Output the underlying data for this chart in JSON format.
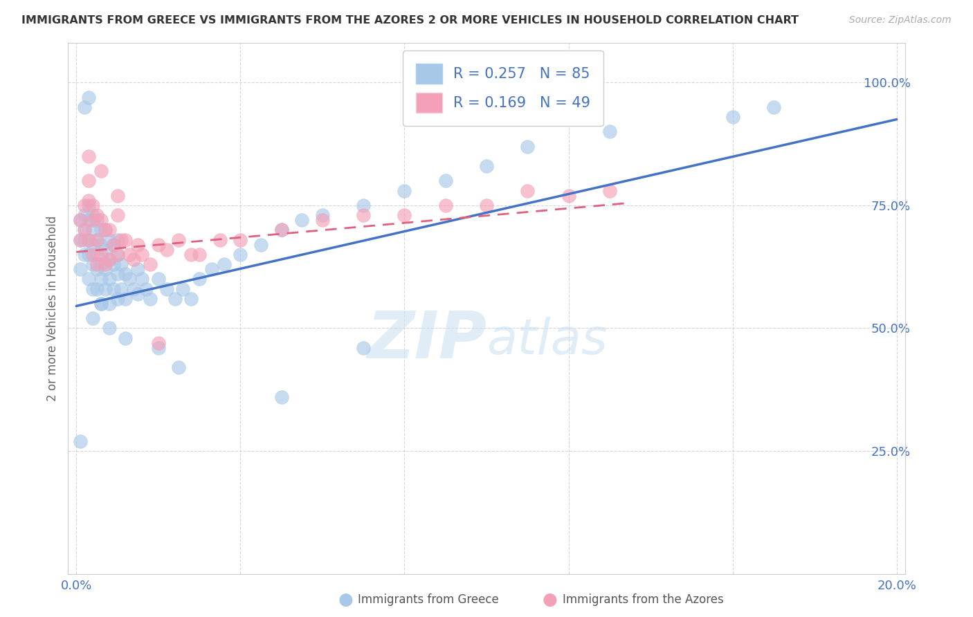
{
  "title": "IMMIGRANTS FROM GREECE VS IMMIGRANTS FROM THE AZORES 2 OR MORE VEHICLES IN HOUSEHOLD CORRELATION CHART",
  "source": "Source: ZipAtlas.com",
  "ylabel": "2 or more Vehicles in Household",
  "xlim": [
    0.0,
    0.2
  ],
  "ylim": [
    0.0,
    1.0
  ],
  "x_ticks": [
    0.0,
    0.04,
    0.08,
    0.12,
    0.16,
    0.2
  ],
  "x_tick_labels": [
    "0.0%",
    "",
    "",
    "",
    "",
    "20.0%"
  ],
  "y_ticks": [
    0.0,
    0.25,
    0.5,
    0.75,
    1.0
  ],
  "y_tick_labels": [
    "",
    "25.0%",
    "50.0%",
    "75.0%",
    "100.0%"
  ],
  "greece_color": "#a8c8e8",
  "azores_color": "#f4a0b8",
  "greece_R": 0.257,
  "greece_N": 85,
  "azores_R": 0.169,
  "azores_N": 49,
  "greece_line_color": "#4472c4",
  "azores_line_color": "#e06080",
  "watermark_zip": "ZIP",
  "watermark_atlas": "atlas",
  "legend_label_greece": "Immigrants from Greece",
  "legend_label_azores": "Immigrants from the Azores",
  "greece_line_x0": 0.0,
  "greece_line_y0": 0.545,
  "greece_line_x1": 0.2,
  "greece_line_y1": 0.925,
  "azores_line_x0": 0.0,
  "azores_line_y0": 0.655,
  "azores_line_x1": 0.135,
  "azores_line_y1": 0.755,
  "background_color": "#ffffff",
  "grid_color": "#cccccc",
  "greece_scatter_x": [
    0.001,
    0.001,
    0.001,
    0.002,
    0.002,
    0.002,
    0.002,
    0.003,
    0.003,
    0.003,
    0.003,
    0.003,
    0.004,
    0.004,
    0.004,
    0.004,
    0.004,
    0.005,
    0.005,
    0.005,
    0.005,
    0.005,
    0.006,
    0.006,
    0.006,
    0.006,
    0.006,
    0.007,
    0.007,
    0.007,
    0.007,
    0.008,
    0.008,
    0.008,
    0.008,
    0.009,
    0.009,
    0.009,
    0.01,
    0.01,
    0.01,
    0.011,
    0.011,
    0.012,
    0.012,
    0.013,
    0.014,
    0.015,
    0.015,
    0.016,
    0.017,
    0.018,
    0.02,
    0.022,
    0.024,
    0.026,
    0.028,
    0.03,
    0.033,
    0.036,
    0.04,
    0.045,
    0.05,
    0.055,
    0.06,
    0.07,
    0.08,
    0.09,
    0.1,
    0.11,
    0.13,
    0.16,
    0.17,
    0.002,
    0.003,
    0.01,
    0.02,
    0.025,
    0.05,
    0.07,
    0.001,
    0.004,
    0.006,
    0.008,
    0.012
  ],
  "greece_scatter_y": [
    0.62,
    0.68,
    0.72,
    0.7,
    0.73,
    0.68,
    0.65,
    0.75,
    0.72,
    0.68,
    0.65,
    0.6,
    0.73,
    0.7,
    0.67,
    0.63,
    0.58,
    0.72,
    0.68,
    0.65,
    0.62,
    0.58,
    0.7,
    0.67,
    0.63,
    0.6,
    0.55,
    0.7,
    0.66,
    0.62,
    0.58,
    0.68,
    0.64,
    0.6,
    0.55,
    0.67,
    0.63,
    0.58,
    0.65,
    0.61,
    0.56,
    0.63,
    0.58,
    0.61,
    0.56,
    0.6,
    0.58,
    0.62,
    0.57,
    0.6,
    0.58,
    0.56,
    0.6,
    0.58,
    0.56,
    0.58,
    0.56,
    0.6,
    0.62,
    0.63,
    0.65,
    0.67,
    0.7,
    0.72,
    0.73,
    0.75,
    0.78,
    0.8,
    0.83,
    0.87,
    0.9,
    0.93,
    0.95,
    0.95,
    0.97,
    0.68,
    0.46,
    0.42,
    0.36,
    0.46,
    0.27,
    0.52,
    0.55,
    0.5,
    0.48
  ],
  "azores_scatter_x": [
    0.001,
    0.001,
    0.002,
    0.002,
    0.003,
    0.003,
    0.003,
    0.004,
    0.004,
    0.004,
    0.005,
    0.005,
    0.005,
    0.006,
    0.006,
    0.007,
    0.007,
    0.008,
    0.008,
    0.009,
    0.01,
    0.01,
    0.011,
    0.012,
    0.013,
    0.014,
    0.015,
    0.016,
    0.018,
    0.02,
    0.022,
    0.025,
    0.028,
    0.03,
    0.035,
    0.04,
    0.05,
    0.06,
    0.07,
    0.08,
    0.09,
    0.1,
    0.11,
    0.12,
    0.13,
    0.003,
    0.006,
    0.01,
    0.02
  ],
  "azores_scatter_y": [
    0.72,
    0.68,
    0.75,
    0.7,
    0.8,
    0.76,
    0.68,
    0.75,
    0.72,
    0.65,
    0.73,
    0.68,
    0.63,
    0.72,
    0.65,
    0.7,
    0.63,
    0.7,
    0.64,
    0.67,
    0.73,
    0.65,
    0.68,
    0.68,
    0.65,
    0.64,
    0.67,
    0.65,
    0.63,
    0.67,
    0.66,
    0.68,
    0.65,
    0.65,
    0.68,
    0.68,
    0.7,
    0.72,
    0.73,
    0.73,
    0.75,
    0.75,
    0.78,
    0.77,
    0.78,
    0.85,
    0.82,
    0.77,
    0.47
  ]
}
